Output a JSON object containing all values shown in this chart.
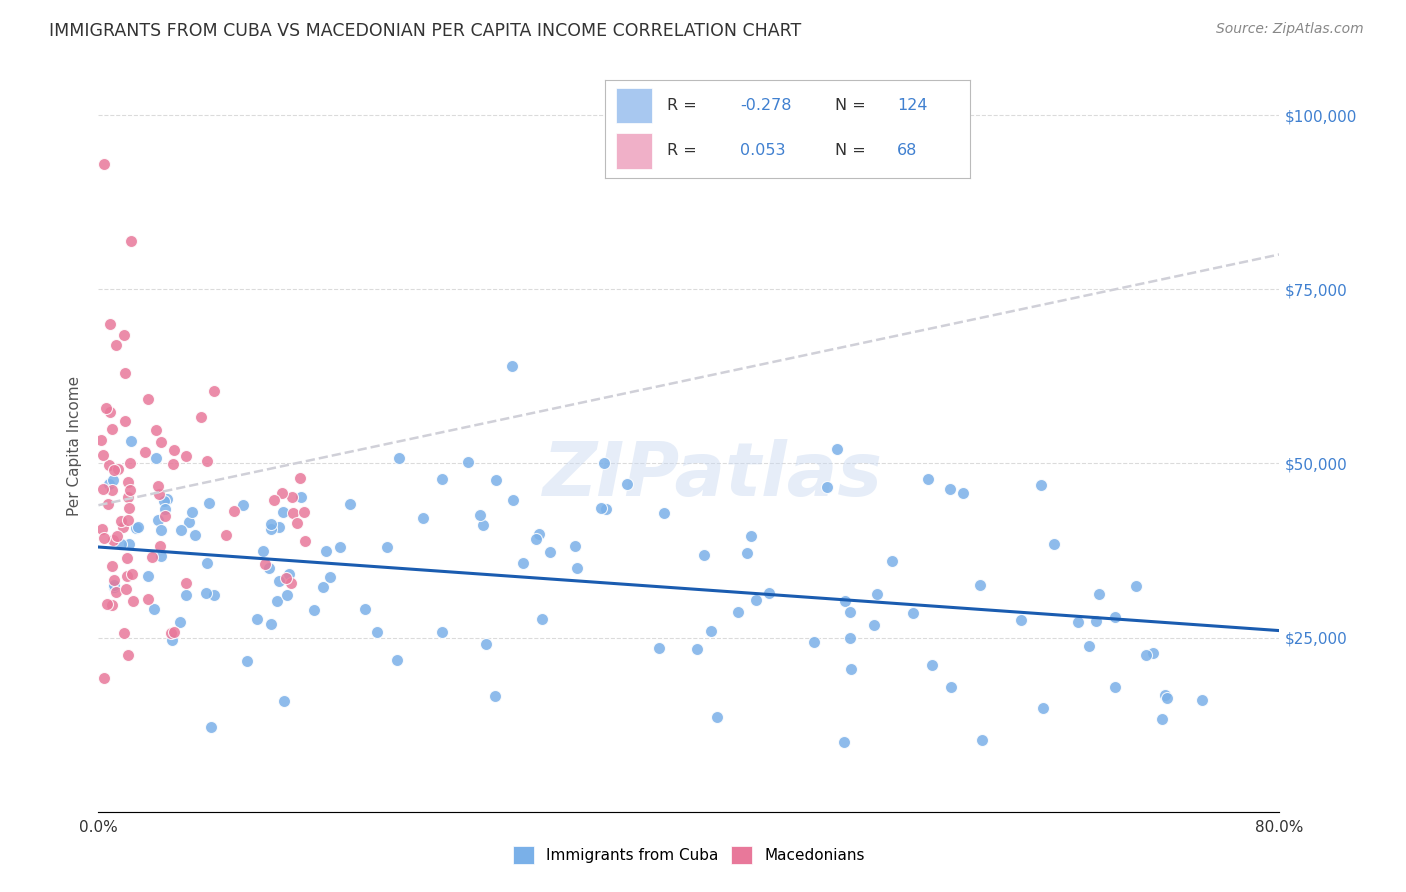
{
  "title": "IMMIGRANTS FROM CUBA VS MACEDONIAN PER CAPITA INCOME CORRELATION CHART",
  "source": "Source: ZipAtlas.com",
  "watermark": "ZIPatlas",
  "ylabel": "Per Capita Income",
  "cuba_color": "#a8c8f0",
  "cuba_dot_color": "#7ab0e8",
  "mac_color": "#f0b0c8",
  "mac_dot_color": "#e8789a",
  "cuba_line_color": "#1a5cb0",
  "mac_line_color": "#d0d0d8",
  "background_color": "#ffffff",
  "grid_color": "#d8d8d8",
  "title_color": "#333333",
  "right_axis_color": "#4080d0",
  "source_color": "#888888",
  "xlim": [
    0.0,
    0.8
  ],
  "ylim": [
    0,
    105000
  ],
  "cuba_R": -0.278,
  "cuba_N": 124,
  "mac_R": 0.053,
  "mac_N": 68,
  "figsize": [
    14.06,
    8.92
  ],
  "dpi": 100,
  "cuba_line_y0": 38000,
  "cuba_line_y1": 26000,
  "mac_line_y0": 44000,
  "mac_line_y1": 80000
}
